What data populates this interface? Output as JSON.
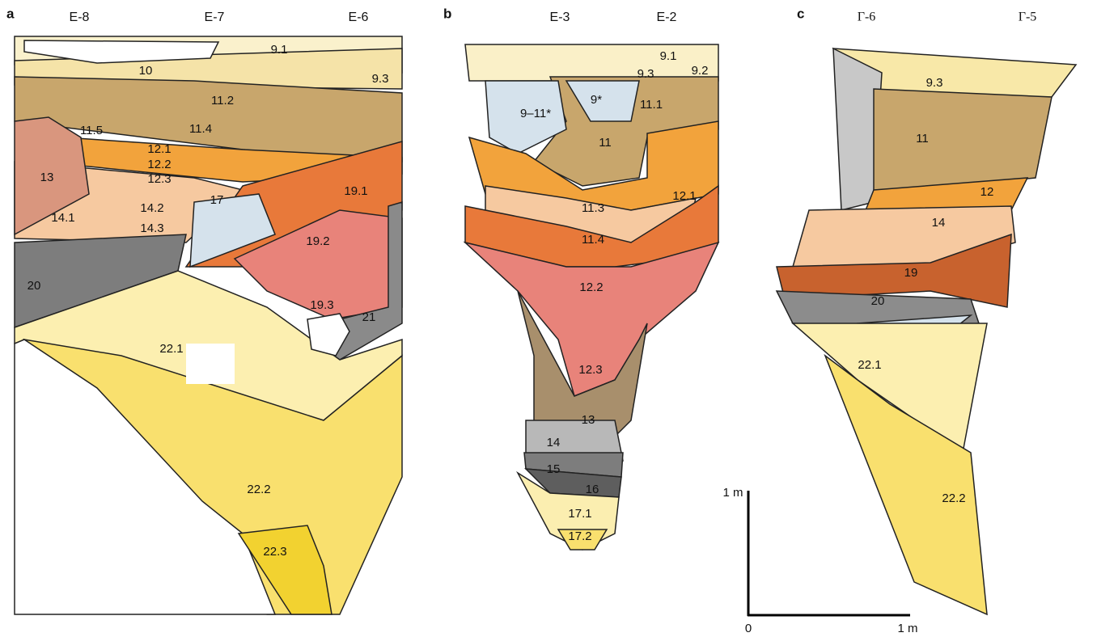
{
  "panels": [
    {
      "label": "a",
      "squares": [
        "E-8",
        "E-7",
        "E-6"
      ],
      "layers": [
        "9.1",
        "10",
        "9.3",
        "11.2",
        "11.5",
        "11.4",
        "12.1",
        "12.2",
        "12.3",
        "13",
        "19.1",
        "17",
        "14.2",
        "14.1",
        "14.3",
        "19.2",
        "20",
        "19.3",
        "21",
        "22.1",
        "22.2",
        "22.3"
      ]
    },
    {
      "label": "b",
      "squares": [
        "E-3",
        "E-2"
      ],
      "layers": [
        "9.1",
        "9.3",
        "9.2",
        "9*",
        "11.1",
        "9–11*",
        "11",
        "12.1",
        "11.3",
        "11.4",
        "12.2",
        "12.3",
        "13",
        "14",
        "15",
        "16",
        "17.1",
        "17.2"
      ]
    },
    {
      "label": "c",
      "squares": [
        "Γ-6",
        "Γ-5"
      ],
      "layers": [
        "9.3",
        "11",
        "12",
        "14",
        "19",
        "20",
        "22.1",
        "22.2"
      ]
    }
  ],
  "scale": {
    "vertical_label": "1 m",
    "origin": "0",
    "horizontal_label": "1 m"
  }
}
